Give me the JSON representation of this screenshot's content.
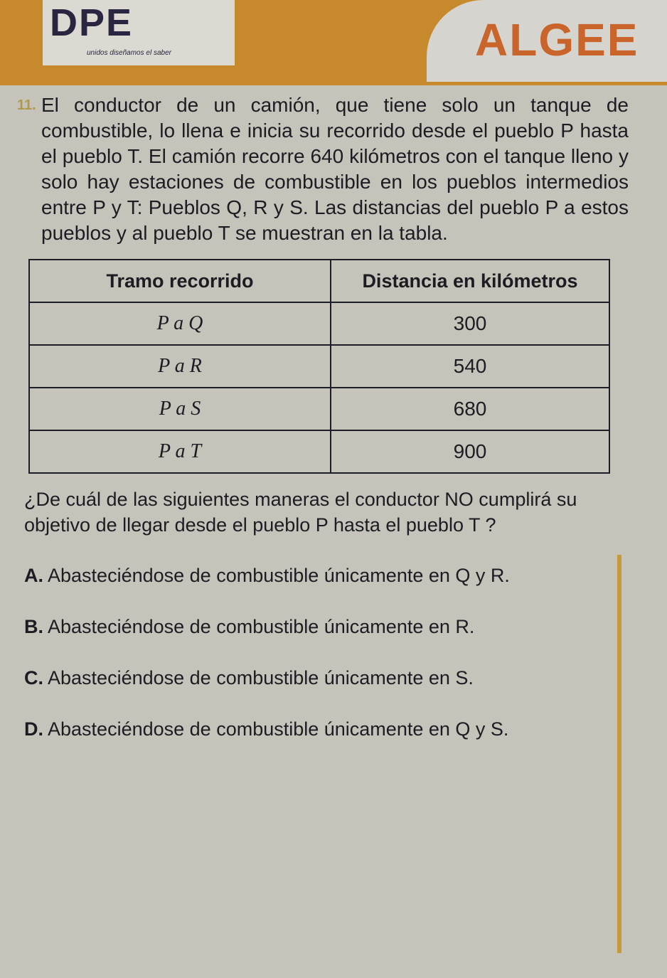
{
  "header": {
    "logo_text": "DPE",
    "logo_tagline": "unidos diseñamos el saber",
    "brand": "ALGEE",
    "header_color": "#c68a2c",
    "brand_color": "#c9642a"
  },
  "problem": {
    "number": "11.",
    "intro": "El conductor de un camión, que tiene solo un tanque de combustible, lo llena e inicia su recorrido desde el pueblo P hasta el pueblo T. El camión recorre 640 kilómetros con el tanque lleno y solo hay estaciones de combustible en los pueblos intermedios entre P y T: Pueblos Q, R y S. Las distancias del pueblo P a estos pueblos y al pueblo T se muestran en la tabla.",
    "table": {
      "headers": [
        "Tramo recorrido",
        "Distancia en kilómetros"
      ],
      "rows": [
        [
          "P a Q",
          "300"
        ],
        [
          "P a R",
          "540"
        ],
        [
          "P a S",
          "680"
        ],
        [
          "P a T",
          "900"
        ]
      ]
    },
    "question": "¿De cuál de las siguientes maneras el conductor NO cumplirá su objetivo de llegar desde el pueblo P hasta el pueblo T ?",
    "options": [
      {
        "letter": "A.",
        "text": "Abasteciéndose de combustible únicamente en Q y R."
      },
      {
        "letter": "B.",
        "text": "Abasteciéndose de combustible únicamente en R."
      },
      {
        "letter": "C.",
        "text": "Abasteciéndose de combustible únicamente en S."
      },
      {
        "letter": "D.",
        "text": "Abasteciéndose de combustible únicamente en Q y S."
      }
    ]
  }
}
